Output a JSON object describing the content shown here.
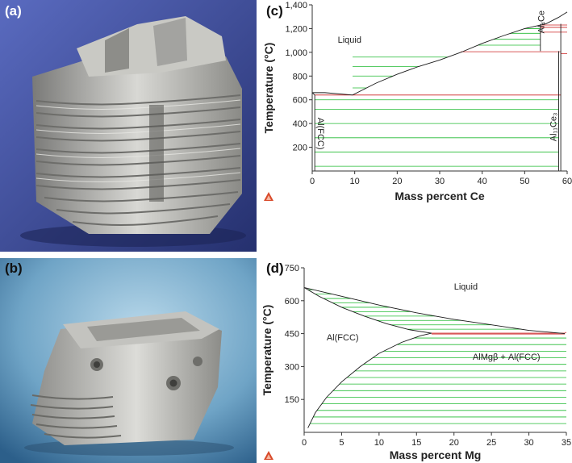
{
  "panels": {
    "a": {
      "label": "(a)",
      "depicts": "cylinder-head-casting-finned"
    },
    "b": {
      "label": "(b)",
      "depicts": "cylinder-head-casting-compact"
    },
    "c": {
      "label": "(c)"
    },
    "d": {
      "label": "(d)"
    }
  },
  "colors": {
    "boundary": "#1a1a1a",
    "tie_line": "#22bb33",
    "eutectic": "#cc2222",
    "photo_a_bg": "#3c4a9a",
    "photo_b_bg": "#7fb0cf",
    "metal": "#b8b8b6"
  },
  "chart_data": [
    {
      "type": "phase-diagram",
      "xlabel": "Mass percent Ce",
      "ylabel": "Temperature (°C)",
      "xlim": [
        0,
        60
      ],
      "ylim": [
        0,
        1400
      ],
      "x_ticks": [
        "0",
        "10",
        "20",
        "30",
        "40",
        "50",
        "60"
      ],
      "y_ticks": [
        "200",
        "400",
        "600",
        "800",
        "1,000",
        "1,200",
        "1,400"
      ],
      "x_tick_values": [
        0,
        10,
        20,
        30,
        40,
        50,
        60
      ],
      "y_tick_values": [
        200,
        400,
        600,
        800,
        1000,
        1200,
        1400
      ],
      "regions": [
        {
          "label": "Liquid",
          "x": 6,
          "y": 1080
        },
        {
          "label": "Al(FCC)",
          "x": 1.3,
          "y": 450,
          "rotate": 90
        },
        {
          "label": "Al₄Ce",
          "x": 54.6,
          "y": 1160,
          "rotate": -90
        },
        {
          "label": "Al₁₁Ce₃",
          "x": 57.4,
          "y": 250,
          "rotate": -90
        }
      ],
      "liquidus": [
        [
          0,
          660
        ],
        [
          3,
          660
        ],
        [
          9.5,
          640
        ],
        [
          15,
          740
        ],
        [
          20,
          815
        ],
        [
          25,
          880
        ],
        [
          30,
          935
        ],
        [
          35,
          1000
        ],
        [
          40,
          1075
        ],
        [
          45,
          1140
        ],
        [
          50,
          1200
        ],
        [
          55,
          1240
        ],
        [
          58,
          1295
        ],
        [
          60,
          1340
        ]
      ],
      "solidus": [
        [
          0,
          660
        ],
        [
          0.6,
          640
        ]
      ],
      "eutectic_lines": [
        {
          "x1": 0.6,
          "x2": 58.5,
          "y": 640
        },
        {
          "x1": 35,
          "x2": 58.5,
          "y": 1005
        },
        {
          "x1": 53.7,
          "x2": 60,
          "y": 1230
        },
        {
          "x1": 53.7,
          "x2": 60,
          "y": 1210
        },
        {
          "x1": 53.7,
          "x2": 60,
          "y": 1170
        },
        {
          "x1": 58.5,
          "x2": 60,
          "y": 990
        }
      ],
      "phase_boundaries": [
        [
          53.7,
          1010,
          53.7,
          1240
        ],
        [
          58.5,
          0,
          58.5,
          1240
        ],
        [
          58.0,
          0,
          58.0,
          1010
        ],
        [
          0.6,
          0,
          0.6,
          640
        ]
      ],
      "tie_lines": {
        "low": {
          "x1": 0.6,
          "x2": 58.0,
          "ys": [
            40,
            160,
            280,
            400,
            520,
            600
          ]
        },
        "mid": {
          "x1": 9.5,
          "ys": [
            700,
            800,
            880,
            960
          ]
        },
        "high": {
          "ys": [
            1060,
            1110,
            1160,
            1200
          ]
        }
      }
    },
    {
      "type": "phase-diagram",
      "xlabel": "Mass percent Mg",
      "ylabel": "Temperature (°C)",
      "xlim": [
        0,
        35
      ],
      "ylim": [
        0,
        750
      ],
      "x_ticks": [
        "0",
        "5",
        "10",
        "15",
        "20",
        "25",
        "30",
        "35"
      ],
      "y_ticks": [
        "150",
        "300",
        "450",
        "600",
        "750"
      ],
      "x_tick_values": [
        0,
        5,
        10,
        15,
        20,
        25,
        30,
        35
      ],
      "y_tick_values": [
        150,
        300,
        450,
        600,
        750
      ],
      "regions": [
        {
          "label": "Liquid",
          "x": 20,
          "y": 650
        },
        {
          "label": "Al(FCC)",
          "x": 3,
          "y": 420
        },
        {
          "label": "AlMgβ + Al(FCC)",
          "x": 22.5,
          "y": 330
        }
      ],
      "liquidus": [
        [
          0,
          660
        ],
        [
          5,
          620
        ],
        [
          10,
          580
        ],
        [
          15,
          545
        ],
        [
          20,
          515
        ],
        [
          25,
          490
        ],
        [
          30,
          465
        ],
        [
          34.8,
          450
        ]
      ],
      "solidus": [
        [
          0,
          660
        ],
        [
          2,
          620
        ],
        [
          5,
          570
        ],
        [
          8,
          530
        ],
        [
          11,
          495
        ],
        [
          14,
          468
        ],
        [
          17,
          452
        ]
      ],
      "solvus": [
        [
          0.5,
          20
        ],
        [
          1.5,
          90
        ],
        [
          3,
          160
        ],
        [
          5,
          230
        ],
        [
          7.5,
          300
        ],
        [
          10,
          360
        ],
        [
          13,
          410
        ],
        [
          15.5,
          440
        ],
        [
          17,
          452
        ]
      ],
      "eutectic_lines": [
        {
          "x1": 17,
          "x2": 34.8,
          "y": 452
        },
        {
          "x1": 17,
          "x2": 34.8,
          "y": 448
        },
        {
          "x1": 34.8,
          "x2": 35,
          "y": 455
        }
      ],
      "tie_lines": {
        "two_phase_top": {
          "ys": [
            470,
            490,
            510,
            530,
            550,
            570,
            590,
            610,
            630,
            650
          ]
        },
        "two_phase_bottom": {
          "x2": 35,
          "ys": [
            40,
            70,
            100,
            130,
            160,
            190,
            220,
            250,
            280,
            310,
            340,
            370,
            400,
            430
          ]
        }
      }
    }
  ]
}
